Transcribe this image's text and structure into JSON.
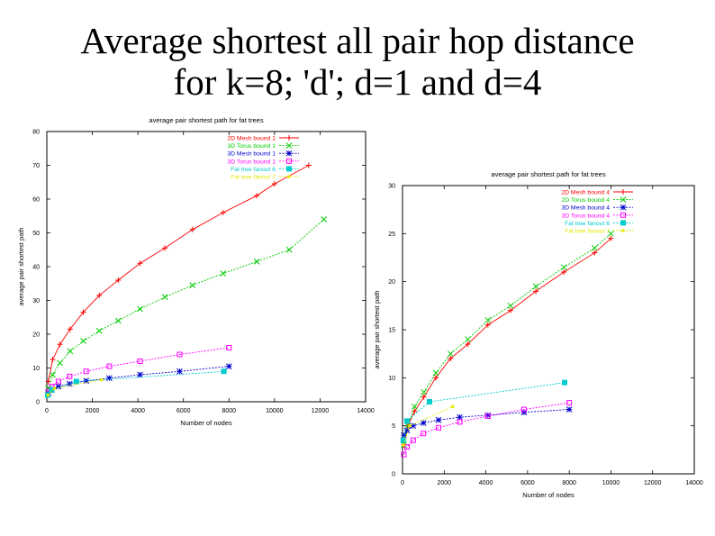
{
  "slide": {
    "title_line1": "Average shortest all pair hop distance",
    "title_line2": "for k=8; 'd'; d=1 and d=4"
  },
  "chart_data": [
    {
      "type": "line",
      "title": "average pair shortest path for fat trees",
      "xlabel": "Number of nodes",
      "ylabel": "average pair shortest path",
      "xlim": [
        0,
        14000
      ],
      "ylim": [
        0,
        80
      ],
      "xticks": [
        0,
        2000,
        4000,
        6000,
        8000,
        10000,
        12000,
        14000
      ],
      "yticks": [
        0,
        10,
        20,
        30,
        40,
        50,
        60,
        70,
        80
      ],
      "legend_position": "top-right",
      "series": [
        {
          "name": "2D Mesh bound 1",
          "color": "#ff0000",
          "marker": "plus",
          "points": [
            [
              64,
              6
            ],
            [
              256,
              12.5
            ],
            [
              576,
              17
            ],
            [
              1024,
              21.5
            ],
            [
              1600,
              26.5
            ],
            [
              2304,
              31.5
            ],
            [
              3136,
              36
            ],
            [
              4096,
              41
            ],
            [
              5184,
              45.5
            ],
            [
              6400,
              51
            ],
            [
              7744,
              56
            ],
            [
              9216,
              61
            ],
            [
              10000,
              64.5
            ],
            [
              11500,
              70
            ]
          ]
        },
        {
          "name": "3D Torus bound 1",
          "color": "#00cc00",
          "marker": "x",
          "points": [
            [
              64,
              4
            ],
            [
              256,
              8
            ],
            [
              576,
              11.5
            ],
            [
              1024,
              15
            ],
            [
              1600,
              18
            ],
            [
              2304,
              21
            ],
            [
              3136,
              24
            ],
            [
              4096,
              27.5
            ],
            [
              5184,
              31
            ],
            [
              6400,
              34.5
            ],
            [
              7744,
              38
            ],
            [
              9216,
              41.5
            ],
            [
              10648,
              45
            ],
            [
              12167,
              54
            ]
          ]
        },
        {
          "name": "3D Mesh bound 1",
          "color": "#0000cc",
          "marker": "star",
          "points": [
            [
              64,
              2.5
            ],
            [
              216,
              3.5
            ],
            [
              512,
              4.5
            ],
            [
              1000,
              5.3
            ],
            [
              1728,
              6.2
            ],
            [
              2744,
              7
            ],
            [
              4096,
              8
            ],
            [
              5832,
              9
            ],
            [
              8000,
              10.5
            ]
          ]
        },
        {
          "name": "3D Torus bound 1",
          "color": "#ff00ff",
          "marker": "square",
          "points": [
            [
              64,
              3
            ],
            [
              216,
              4.5
            ],
            [
              512,
              6
            ],
            [
              1000,
              7.5
            ],
            [
              1728,
              9
            ],
            [
              2744,
              10.5
            ],
            [
              4096,
              12
            ],
            [
              5832,
              14
            ],
            [
              8000,
              16
            ]
          ]
        },
        {
          "name": "Fat tree fanout 6",
          "color": "#00cccc",
          "marker": "filled-square",
          "points": [
            [
              36,
              2
            ],
            [
              216,
              3.5
            ],
            [
              1296,
              6
            ],
            [
              7776,
              9
            ]
          ]
        },
        {
          "name": "Fat tree fanout 7",
          "color": "#e6e600",
          "marker": "dot",
          "points": [
            [
              49,
              2
            ],
            [
              343,
              4
            ],
            [
              2401,
              6.5
            ],
            [
              16807,
              9
            ]
          ]
        }
      ]
    },
    {
      "type": "line",
      "title": "average pair shortest path for fat trees",
      "xlabel": "Number of nodes",
      "ylabel": "average pair shortest path",
      "xlim": [
        0,
        14000
      ],
      "ylim": [
        0,
        30
      ],
      "xticks": [
        0,
        2000,
        4000,
        6000,
        8000,
        10000,
        12000,
        14000
      ],
      "yticks": [
        0,
        5,
        10,
        15,
        20,
        25,
        30
      ],
      "legend_position": "top-right",
      "series": [
        {
          "name": "2D Mesh bound 4",
          "color": "#ff0000",
          "marker": "plus",
          "points": [
            [
              64,
              3
            ],
            [
              256,
              5
            ],
            [
              576,
              6.5
            ],
            [
              1024,
              8
            ],
            [
              1600,
              10
            ],
            [
              2304,
              12
            ],
            [
              3136,
              13.5
            ],
            [
              4096,
              15.5
            ],
            [
              5184,
              17
            ],
            [
              6400,
              19
            ],
            [
              7744,
              21
            ],
            [
              9216,
              23
            ],
            [
              10000,
              24.5
            ]
          ]
        },
        {
          "name": "2D Torus bound 4",
          "color": "#00cc00",
          "marker": "x",
          "points": [
            [
              64,
              3
            ],
            [
              256,
              5
            ],
            [
              576,
              7
            ],
            [
              1024,
              8.5
            ],
            [
              1600,
              10.5
            ],
            [
              2304,
              12.5
            ],
            [
              3136,
              14
            ],
            [
              4096,
              16
            ],
            [
              5184,
              17.5
            ],
            [
              6400,
              19.5
            ],
            [
              7744,
              21.5
            ],
            [
              9216,
              23.5
            ],
            [
              10000,
              25
            ]
          ]
        },
        {
          "name": "3D Mesh bound 4",
          "color": "#0000cc",
          "marker": "star",
          "points": [
            [
              64,
              4
            ],
            [
              216,
              4.5
            ],
            [
              512,
              5
            ],
            [
              1000,
              5.3
            ],
            [
              1728,
              5.6
            ],
            [
              2744,
              5.9
            ],
            [
              4096,
              6.1
            ],
            [
              5832,
              6.4
            ],
            [
              8000,
              6.7
            ]
          ]
        },
        {
          "name": "3D Torus bound 4",
          "color": "#ff00ff",
          "marker": "square",
          "points": [
            [
              64,
              2
            ],
            [
              216,
              2.8
            ],
            [
              512,
              3.5
            ],
            [
              1000,
              4.2
            ],
            [
              1728,
              4.8
            ],
            [
              2744,
              5.4
            ],
            [
              4096,
              6
            ],
            [
              5832,
              6.7
            ],
            [
              8000,
              7.4
            ]
          ]
        },
        {
          "name": "Fat tree fanout 6",
          "color": "#00cccc",
          "marker": "filled-square",
          "points": [
            [
              36,
              3.5
            ],
            [
              216,
              5.5
            ],
            [
              1296,
              7.5
            ],
            [
              7776,
              9.5
            ]
          ]
        },
        {
          "name": "Fat tree fanout 7",
          "color": "#e6e600",
          "marker": "dot",
          "points": [
            [
              49,
              3
            ],
            [
              343,
              5
            ],
            [
              2401,
              7
            ],
            [
              16807,
              10
            ]
          ]
        }
      ]
    }
  ]
}
